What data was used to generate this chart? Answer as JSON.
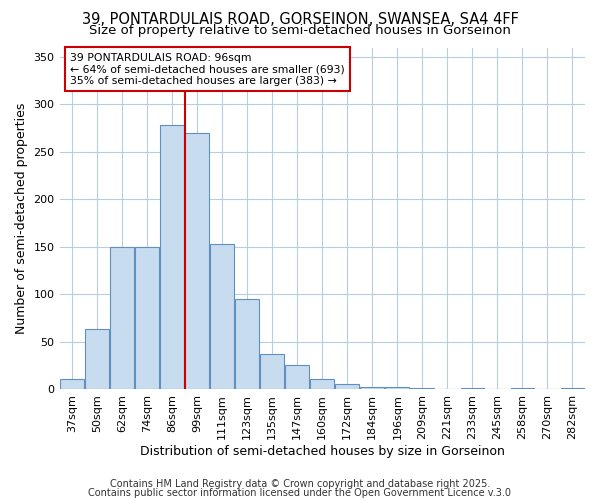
{
  "title1": "39, PONTARDULAIS ROAD, GORSEINON, SWANSEA, SA4 4FF",
  "title2": "Size of property relative to semi-detached houses in Gorseinon",
  "xlabel": "Distribution of semi-detached houses by size in Gorseinon",
  "ylabel": "Number of semi-detached properties",
  "categories": [
    "37sqm",
    "50sqm",
    "62sqm",
    "74sqm",
    "86sqm",
    "99sqm",
    "111sqm",
    "123sqm",
    "135sqm",
    "147sqm",
    "160sqm",
    "172sqm",
    "184sqm",
    "196sqm",
    "209sqm",
    "221sqm",
    "233sqm",
    "245sqm",
    "258sqm",
    "270sqm",
    "282sqm"
  ],
  "values": [
    10,
    63,
    150,
    150,
    278,
    270,
    153,
    95,
    37,
    25,
    10,
    5,
    2,
    2,
    1,
    0,
    1,
    0,
    1,
    0,
    1
  ],
  "bar_color": "#c8dcf0",
  "bar_edge_color": "#6090c0",
  "bar_linewidth": 0.8,
  "vline_x_index": 5,
  "vline_color": "#cc0000",
  "annotation_title": "39 PONTARDULAIS ROAD: 96sqm",
  "annotation_line2": "← 64% of semi-detached houses are smaller (693)",
  "annotation_line3": "35% of semi-detached houses are larger (383) →",
  "annotation_box_edgecolor": "#cc0000",
  "annotation_bg": "#ffffff",
  "ylim": [
    0,
    360
  ],
  "yticks": [
    0,
    50,
    100,
    150,
    200,
    250,
    300,
    350
  ],
  "footer1": "Contains HM Land Registry data © Crown copyright and database right 2025.",
  "footer2": "Contains public sector information licensed under the Open Government Licence v.3.0",
  "background_color": "#ffffff",
  "plot_bg_color": "#ffffff",
  "grid_color": "#b8cce4",
  "title_fontsize": 10.5,
  "subtitle_fontsize": 9.5,
  "axis_label_fontsize": 9,
  "tick_fontsize": 8,
  "footer_fontsize": 7
}
